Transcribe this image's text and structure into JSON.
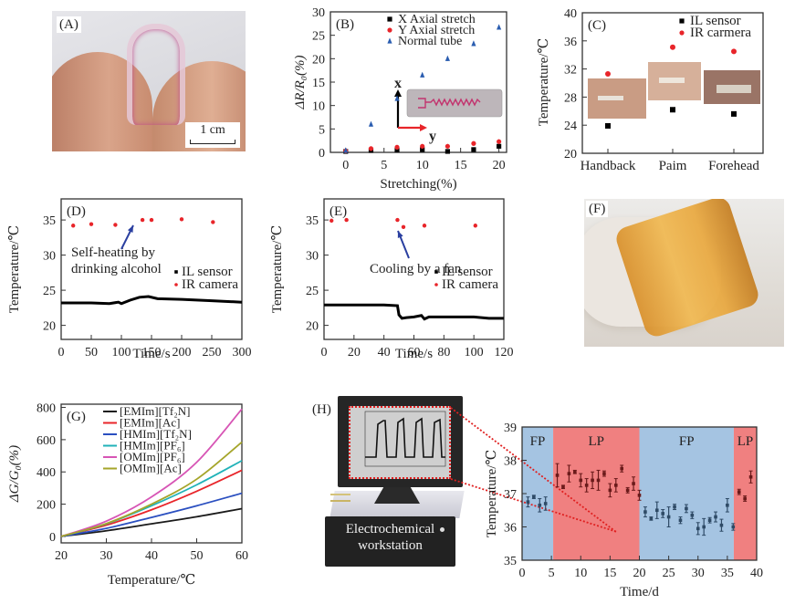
{
  "panels": {
    "A": {
      "label": "(A)",
      "scale_bar": "1 cm"
    },
    "F": {
      "label": "(F)"
    },
    "H_device": {
      "label": "(H)",
      "device_text_line1": "Electrochemical",
      "device_text_line2": "workstation"
    }
  },
  "chart_data": [
    {
      "id": "B",
      "panel_label": "(B)",
      "type": "scatter",
      "xlabel": "Stretching(%)",
      "ylabel": "ΔR/R₀(%)",
      "xlim": [
        -2,
        21
      ],
      "ylim": [
        0,
        30
      ],
      "xticks": [
        0,
        5,
        10,
        15,
        20
      ],
      "yticks": [
        0,
        5,
        10,
        15,
        20,
        25,
        30
      ],
      "legend": "top-right",
      "inset_axis_labels": [
        "x",
        "y"
      ],
      "series": [
        {
          "name": "X Axial stretch",
          "marker": "square",
          "color": "#000000",
          "x": [
            0,
            3.3,
            6.7,
            10,
            13.3,
            16.7,
            20
          ],
          "y": [
            0.2,
            0.4,
            0.5,
            0.6,
            0.2,
            0.6,
            1.3
          ]
        },
        {
          "name": "Y Axial stretch",
          "marker": "circle",
          "color": "#e8252a",
          "x": [
            0,
            3.3,
            6.7,
            10,
            13.3,
            16.7,
            20
          ],
          "y": [
            0.3,
            0.8,
            1.1,
            1.3,
            1.3,
            1.9,
            2.3
          ]
        },
        {
          "name": "Normal tube",
          "marker": "triangle",
          "color": "#2a5db0",
          "x": [
            0,
            3.3,
            6.7,
            10,
            13.3,
            16.7,
            20
          ],
          "y": [
            0.4,
            6,
            11.5,
            16.5,
            20,
            23.2,
            26.7
          ]
        }
      ]
    },
    {
      "id": "C",
      "panel_label": "(C)",
      "type": "scatter",
      "xlabel": "",
      "ylabel": "Temperature/℃",
      "categories": [
        "Handback",
        "Paim",
        "Forehead"
      ],
      "ylim": [
        20,
        40
      ],
      "yticks": [
        20,
        24,
        28,
        32,
        36,
        40
      ],
      "legend": "top-right",
      "series": [
        {
          "name": "IL sensor",
          "marker": "square",
          "color": "#000000",
          "values": [
            23.9,
            26.2,
            25.6
          ]
        },
        {
          "name": "IR carmera",
          "marker": "circle",
          "color": "#e8252a",
          "values": [
            31.3,
            35.1,
            34.5
          ]
        }
      ]
    },
    {
      "id": "D",
      "panel_label": "(D)",
      "type": "line",
      "xlabel": "Time/s",
      "ylabel": "Temperature/℃",
      "xlim": [
        0,
        300
      ],
      "ylim": [
        18,
        38
      ],
      "xticks": [
        0,
        50,
        100,
        150,
        200,
        250,
        300
      ],
      "yticks": [
        20,
        25,
        30,
        35
      ],
      "legend": "right",
      "annotation": [
        "Self-heating by",
        "drinking alcohol"
      ],
      "series": [
        {
          "name": "IL sensor",
          "marker": "line",
          "color": "#000000",
          "x": [
            0,
            50,
            80,
            95,
            100,
            115,
            130,
            145,
            160,
            200,
            250,
            300
          ],
          "y": [
            23.2,
            23.2,
            23.1,
            23.3,
            23.1,
            23.6,
            24.0,
            24.1,
            23.8,
            23.7,
            23.5,
            23.3
          ]
        },
        {
          "name": "IR camera",
          "marker": "circle",
          "color": "#e8252a",
          "x": [
            20,
            50,
            90,
            135,
            150,
            200,
            252
          ],
          "y": [
            34.2,
            34.4,
            34.3,
            35.0,
            35.0,
            35.1,
            34.7
          ]
        }
      ]
    },
    {
      "id": "E",
      "panel_label": "(E)",
      "type": "line",
      "xlabel": "Time/s",
      "ylabel": "Temperature/℃",
      "xlim": [
        0,
        120
      ],
      "ylim": [
        18,
        38
      ],
      "xticks": [
        0,
        20,
        40,
        60,
        80,
        100,
        120
      ],
      "yticks": [
        20,
        25,
        30,
        35
      ],
      "legend": "right",
      "annotation": [
        "Cooling by a fan"
      ],
      "series": [
        {
          "name": "IL sensor",
          "marker": "line",
          "color": "#000000",
          "x": [
            0,
            20,
            40,
            49,
            50,
            52,
            55,
            60,
            65,
            67,
            70,
            80,
            100,
            110,
            120
          ],
          "y": [
            22.9,
            22.9,
            22.9,
            22.8,
            21.5,
            21.0,
            21.1,
            21.2,
            21.4,
            20.9,
            21.2,
            21.2,
            21.2,
            21.0,
            21.0
          ]
        },
        {
          "name": "IR camera",
          "marker": "circle",
          "color": "#e8252a",
          "x": [
            5,
            15,
            49,
            53,
            67,
            101
          ],
          "y": [
            34.9,
            35.0,
            35.0,
            34.0,
            34.2,
            34.2
          ]
        }
      ]
    },
    {
      "id": "G",
      "panel_label": "(G)",
      "type": "line",
      "xlabel": "Temperature/℃",
      "ylabel": "ΔG/G₀(%)",
      "xlim": [
        20,
        60
      ],
      "ylim": [
        -40,
        820
      ],
      "xticks": [
        20,
        30,
        40,
        50,
        60
      ],
      "yticks": [
        0,
        200,
        400,
        600,
        800
      ],
      "legend": "top-left",
      "series": [
        {
          "name": "[EMIm][Tf₂N]",
          "color": "#1a1a1a",
          "x": [
            20,
            30,
            40,
            50,
            60
          ],
          "y": [
            0,
            35,
            78,
            122,
            172
          ]
        },
        {
          "name": "[EMIm][Ac]",
          "color": "#e8252a",
          "x": [
            20,
            30,
            40,
            50,
            60
          ],
          "y": [
            0,
            70,
            165,
            280,
            410
          ]
        },
        {
          "name": "[HMIm][Tf₂N]",
          "color": "#2a4fc0",
          "x": [
            20,
            30,
            40,
            50,
            60
          ],
          "y": [
            0,
            50,
            118,
            190,
            268
          ]
        },
        {
          "name": "[HMIm][PF₆]",
          "color": "#20b2b8",
          "x": [
            20,
            30,
            40,
            50,
            60
          ],
          "y": [
            0,
            78,
            190,
            320,
            470
          ]
        },
        {
          "name": "[OMIm][PF₆]",
          "color": "#d755b5",
          "x": [
            20,
            30,
            40,
            50,
            60
          ],
          "y": [
            0,
            95,
            245,
            460,
            790
          ]
        },
        {
          "name": "[OMIm][Ac]",
          "color": "#a5a52a",
          "x": [
            20,
            30,
            40,
            50,
            60
          ],
          "y": [
            0,
            80,
            200,
            355,
            585
          ]
        }
      ]
    },
    {
      "id": "H",
      "panel_label": "",
      "type": "scatter",
      "xlabel": "Time/d",
      "ylabel": "Temperature/℃",
      "xlim": [
        0,
        40
      ],
      "ylim": [
        35,
        39
      ],
      "xticks": [
        0,
        5,
        10,
        15,
        20,
        25,
        30,
        35,
        40
      ],
      "yticks": [
        35,
        36,
        37,
        38,
        39
      ],
      "phases": [
        {
          "label": "FP",
          "from": 0,
          "to": 5.3,
          "color": "#a5c4e2"
        },
        {
          "label": "LP",
          "from": 5.3,
          "to": 20,
          "color": "#f08080"
        },
        {
          "label": "FP",
          "from": 20,
          "to": 36.1,
          "color": "#a5c4e2"
        },
        {
          "label": "LP",
          "from": 36.1,
          "to": 40,
          "color": "#f08080"
        }
      ],
      "series": [
        {
          "name": "FP",
          "color": "#2e4a66",
          "x": [
            1,
            2,
            3,
            4,
            21,
            22,
            23,
            24,
            25,
            26,
            27,
            28,
            29,
            30,
            31,
            32,
            33,
            34,
            35,
            36
          ],
          "y": [
            36.75,
            36.9,
            36.65,
            36.7,
            36.45,
            36.25,
            36.5,
            36.4,
            36.3,
            36.6,
            36.2,
            36.55,
            36.35,
            35.95,
            36.0,
            36.2,
            36.3,
            36.05,
            36.65,
            36.0
          ],
          "err": [
            0.15,
            0.05,
            0.2,
            0.2,
            0.15,
            0.05,
            0.25,
            0.12,
            0.3,
            0.08,
            0.1,
            0.12,
            0.1,
            0.18,
            0.25,
            0.08,
            0.15,
            0.18,
            0.2,
            0.1
          ]
        },
        {
          "name": "LP",
          "color": "#6a1a1a",
          "x": [
            6,
            7,
            8,
            9,
            10,
            11,
            12,
            13,
            14,
            15,
            16,
            17,
            18,
            19,
            20,
            37,
            38,
            39
          ],
          "y": [
            37.55,
            37.2,
            37.6,
            37.65,
            37.4,
            37.25,
            37.4,
            37.4,
            37.6,
            37.1,
            37.25,
            37.75,
            37.1,
            37.3,
            36.95,
            37.05,
            36.85,
            37.5
          ],
          "err": [
            0.35,
            0.05,
            0.25,
            0.05,
            0.2,
            0.2,
            0.25,
            0.3,
            0.08,
            0.2,
            0.2,
            0.1,
            0.08,
            0.2,
            0.15,
            0.08,
            0.08,
            0.18
          ]
        }
      ]
    }
  ]
}
